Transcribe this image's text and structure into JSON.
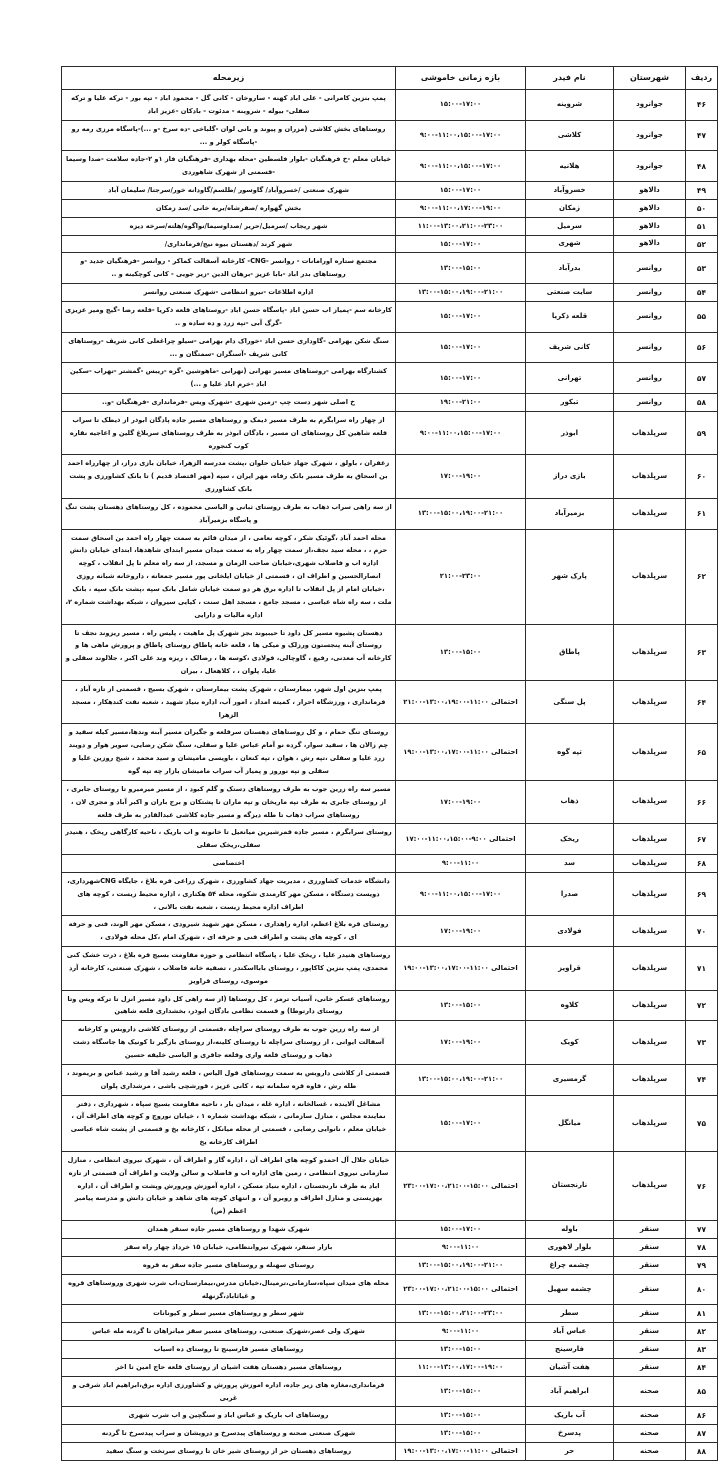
{
  "table": {
    "headers": {
      "row": "ردیف",
      "county": "شهرستان",
      "feeder": "نام فیدر",
      "time": "بازه زمانی خاموشی",
      "area": "زیرمحله"
    },
    "rows": [
      {
        "no": "۴۶",
        "county": "جوانرود",
        "feeder": "شروینه",
        "time": "۱۵:۰۰-۱۷:۰۰",
        "area": "پمپ بنزین کامرانی - علی اباد کهنه - ساروخان - کانی گل - محمود اباد - تپه بور - ترکه علیا و ترکه سفلی- بیوله - شروینه - مدئوت - بادکان -عزیز اباد"
      },
      {
        "no": "۴۷",
        "county": "جوانرود",
        "feeder": "کلاشی",
        "time": "۹:۰۰-۱۱:۰۰،۱۵:۰۰-۱۷:۰۰",
        "area": "روستاهای بخش کلاشی (مزران و پیوند و بانی لوان -گلباخی -ده سرخ -و ...)-پاسگاه مرزی رمه رو -پاسگاه کولر و ..."
      },
      {
        "no": "۴۸",
        "county": "جوانرود",
        "feeder": "هلانیه",
        "time": "۹:۰۰-۱۱:۰۰،۱۵:۰۰-۱۷:۰۰",
        "area": "خیابان معلم -خ فرهنگیان -بلوار فلسطین -محله بهداری -فرهنگیان فاز ۱و ۲-جاده سلامت -صدا وسیما -قسمتی از شهرک شاهوردی"
      },
      {
        "no": "۴۹",
        "county": "دالاهو",
        "feeder": "خسروآباد",
        "time": "۱۵:۰۰-۱۷:۰۰",
        "area": "شهرک صنعتی /خسروآباد/ گاوسور /طلسم/گاودانه خور/سرجتا/ سلیمان آباد"
      },
      {
        "no": "۵۰",
        "county": "دالاهو",
        "feeder": "زمکان",
        "time": "۹:۰۰-۱۱:۰۰،۱۷:۰۰-۱۹:۰۰",
        "area": "بخش گهواره /صفرشاه/بربه خانی /سد زمکان"
      },
      {
        "no": "۵۱",
        "county": "دالاهو",
        "feeder": "سرمیل",
        "time": "۱۱:۰۰-۱۳:۰۰،۲۱:۰۰-۲۳:۰۰",
        "area": "شهر ریجاب /سرمیل/حریر /صداوسیما/نواگوه/هلته/سرخه دیزه"
      },
      {
        "no": "۵۲",
        "county": "دالاهو",
        "feeder": "شهری",
        "time": "۱۵:۰۰-۱۷:۰۰",
        "area": "شهر کرند /دهستان بیوه نیج/فرمانداری/"
      },
      {
        "no": "۵۳",
        "county": "روانسر",
        "feeder": "بدرآباد",
        "time": "۱۳:۰۰-۱۵:۰۰",
        "area": "مجتمع ستاره اورامانات - روانسر -CNG- کارخانه آسفالت کماکر - روانسر -فرهنگیان جدید -و روستاهای بدر اباد -بابا عزیز -برهان الدین -زیر جویی - کانی کوچکینه و .."
      },
      {
        "no": "۵۴",
        "county": "روانسر",
        "feeder": "سایت صنعتی",
        "time": "۱۳:۰۰-۱۵:۰۰،۱۹:۰۰-۲۱:۰۰",
        "area": "اداره اطلاعات -نیرو انتظامی -شهرک صنعتی روانسر"
      },
      {
        "no": "۵۵",
        "county": "روانسر",
        "feeder": "قلعه ذکریا",
        "time": "۱۵:۰۰-۱۷:۰۰",
        "area": "کارخانه سم -پمیاز اب حسن اباد -پاسگاه حسن اباد -روستاهای قلعه ذکریا -قلعه رضا -گیج ومیر عزیزی -گرگ آبی -تپه زرد و ده ساده و .."
      },
      {
        "no": "۵۶",
        "county": "روانسر",
        "feeder": "کانی شریف",
        "time": "۱۵:۰۰-۱۷:۰۰",
        "area": "سنگ شکن بهرامی -گاوداری حسن اباد -خوراک دام بهرامی -سیلو چراغعلی کانی شریف -روستاهای کانی شریف -آسنگران -سمتگان و ..."
      },
      {
        "no": "۵۷",
        "county": "روانسر",
        "feeder": "تهرانی",
        "time": "۱۵:۰۰-۱۷:۰۰",
        "area": "کشتارگاه بهرامی -روستاهای مسیر تهرانی (تهرانی -ماهوشین -گره -ریبس -گمشتر -تهراب -سکین اباد -خرم اباد علیا و ...)"
      },
      {
        "no": "۵۸",
        "county": "روانسر",
        "feeder": "تبکور",
        "time": "۱۹:۰۰-۲۱:۰۰",
        "area": "خ اصلی شهر دست چپ -زمین شهری -شهرک ویس -فرمانداری -فرهنگیان -و.."
      },
      {
        "no": "۵۹",
        "county": "سرپلذهاب",
        "feeder": "ابوذر",
        "time": "۹:۰۰-۱۱:۰۰،۱۵:۰۰-۱۷:۰۰",
        "area": "از چهار راه سرابگرم به طرف مسیر ذیمک و روستاهای مسیر جاده پادگان ابوذر از ذیطک تا سراب قلعه شاهین کل روستاهای ان مسیر ، بادگان ابوذر به طرف روستاهای سربلاغ گلین و اعاجیه نقاره کوب کنجوره"
      },
      {
        "no": "۶۰",
        "county": "سرپلذهاب",
        "feeder": "بازی دراز",
        "time": "۱۷:۰۰-۱۹:۰۰",
        "area": "زعفران ، باولق ، شهرک جهاد خیابان حلوان ،پشت مدرسه الزهرا، خیابان بازی دراز، از چهارراه احمد بن اسحاق به طرف مسیر بانک رفاه، مهر ایران ، سپه (مهر اقتصاد قدیم ) تا بانک کشاورزی و پشت بانک کشاورزی"
      },
      {
        "no": "۶۱",
        "county": "سرپلذهاب",
        "feeder": "بزمیرآباد",
        "time": "۱۳:۰۰-۱۵:۰۰،۱۹:۰۰-۲۱:۰۰",
        "area": "از سه راهی سراب ذهاب به طرف روستای ثبانی و الیاسی محموده ، کل روستاهای دهستان پشت تنگ و پاسگاه بزمیرآباد"
      },
      {
        "no": "۶۲",
        "county": "سرپلذهاب",
        "feeder": "پارک شهر",
        "time": "۲۱:۰۰-۲۳:۰۰",
        "area": "محله احمد آباد ،گوئیک شکر ، کوچه نعامی ، از میدان قائم به سمت چهار راه احمد بن اسحاق سمت حرم ، ، محله سید نجف،از سمت چهار راه به سمت میدان مسیر ابتدای شاهدها، ابتدای خیابان دانش اداره اب و فاضلاب شهری،خیابان صاحب الزمان و مسجد، از سه راه معلم تا پل انقلاب ، کوچه انصارالحسین و اطراف ان ، قسمتی از خیابان ایلخانی پور مسیر جمعانه ، داروخانه شبانه روزی ،خیابان امام از پل انقلاب تا اداره برق هر دو سمت خیابان شامل بانک سپه ،پشت بانک سپه ، بانک ملت ، سه راه شاه عباسی ، مسجد جامع ، مسجد اهل سنت ، کیایی سیروان ، شبکه بهداشت شماره ۲، اداره مالیات و دارایی"
      },
      {
        "no": "۶۳",
        "county": "سرپلذهاب",
        "feeder": "پاطاق",
        "time": "۱۳:۰۰-۱۵:۰۰",
        "area": "دهستان پشیوه مسیر کل داود تا حیبیوند بجز شهرک پل ماهیت ، پلیس راه ، مسیر ریزوند نجف تا روستای آینه پنجستون ورزلک و میکی ها ، قلعه خانه پاطاق روستای پاطاق و پرورش ماهی ها و کارخانه آب معدنی، رفیع ، گاوچالی، فولادی ،کوسه ها ، رضالک ، ریزه وند علی اکبر ، جلالوند سفلی و علیا، پلوان ، ، کلاهعال ، بیران"
      },
      {
        "no": "۶۴",
        "county": "سرپلذهاب",
        "feeder": "پل سنگی",
        "time": "احتمالی ۱۱:۰۰-۱۳:۰۰،۱۹:۰۰-۲۱:۰۰",
        "area": "پمپ بنزین اول شهر، بیمارستان ، شهرک پشت بیمارستان ، شهرک بسیج ، قسمتی از تازه آباد ، فرمانداری ، ورزشگاه احرار ، کمیته امداد ، امور آب، اداره بنیاد شهید ، شعبه نفت کندهکار ، مسجد الزهرا"
      },
      {
        "no": "۶۵",
        "county": "سرپلذهاب",
        "feeder": "تپه گوه",
        "time": "احتمالی ۱۱:۰۰-۱۳:۰۰،۱۷:۰۰-۱۹:۰۰",
        "area": "روستای تنگ حمام ، و کل روستاهای دهستان سرقلعه و جگیران مسیر آبنه وندها،مسیر کیله سفید و چم زالان ها ، سفید سوار، گرده نو آمام عباس علیا و سفلی، سنگ شکن رضایی، سویر هوار و دویند زرد علیا و سفلی ،تپه رش ، هوان ، تپه کنعان ، باویسی مامیشان و سید محمد ، شیخ روزین علیا و سفلی و تپه نوروز و پمیاز آب سراب مامیشان بازار چه تپه گوه"
      },
      {
        "no": "۶۶",
        "county": "سرپلذهاب",
        "feeder": "ذهاب",
        "time": "۱۷:۰۰-۱۹:۰۰",
        "area": "مسیر سه راه زرین جوب به طرف روستاهای دستک و گلم کبود ، از مسیر میرمیرو تا روستای جابری ، از روستای جابری به طرف تپه ماریخان و تپه ماران تا پشتکان و برج باران و اکبر آباد و مجری لان ، روستاهای سراب ذهاب تا طله دیزگه و مسیر جاده کلاشی عبدالقادر به طرف قلعه"
      },
      {
        "no": "۶۷",
        "county": "سرپلذهاب",
        "feeder": "ریخک",
        "time": "احتمالی ۹:۰۰-۱۱:۰۰،۱۵:۰۰-۱۷:۰۰",
        "area": "روستای سرابگرم ، مسیر جاده قمرشیرین میانعیل تا خانونه و اب باریک ، ناحیه کارگاهی ریخک ، هنیدر سفلی،ریخک سفلی"
      },
      {
        "no": "۶۸",
        "county": "سرپلذهاب",
        "feeder": "سد",
        "time": "۹:۰۰-۱۱:۰۰",
        "area": "اختصاصی"
      },
      {
        "no": "۶۹",
        "county": "سرپلذهاب",
        "feeder": "صدرا",
        "time": "۹:۰۰-۱۱:۰۰،۱۵:۰۰-۱۷:۰۰",
        "area": "دانشگاه خدمات کشاورزی ، مدیریت جهاد کشاورزی ، شهرک زراعی قره بلاغ ، جایگاه CNGشهرداری، دویست دستگاه ، مسکن مهر کارمندی شکوه، محله ۵۴ هکتاری ، اداره محیط زیست ، کوچه های اطراف اداره محیط زیست ، شعبه نفت بالانی ،"
      },
      {
        "no": "۷۰",
        "county": "سرپلذهاب",
        "feeder": "فولادی",
        "time": "۱۷:۰۰-۱۹:۰۰",
        "area": "روستای قره بلاغ اعظم، اداره راهداری ، مسکن مهر شهید شیرودی ، مسکن مهر الوند، فنی و حرفه ای ، کوچه های پشت و اطراف فنی و حرفه ای ، شهرک امام ،کل محله فولادی ،"
      },
      {
        "no": "۷۱",
        "county": "سرپلذهاب",
        "feeder": "قراویز",
        "time": "احتمالی ۱۱:۰۰-۱۳:۰۰،۱۷:۰۰-۱۹:۰۰",
        "area": "روستاهای هنیدر علیا ، ریخک علیا ، پاسگاه انتظامی و حوزه مقاومت بسیج قره بلاغ ، ذرت خشک کنی محمدی، پمپ بنزین کاکاپور ، روستای بابااسکندر ، تصفیه خانه فاضلاب ، شهرک صنعتی، کارخانه آرد موسوی، روستای قراویز"
      },
      {
        "no": "۷۲",
        "county": "سرپلذهاب",
        "feeder": "کلاوه",
        "time": "۱۳:۰۰-۱۵:۰۰",
        "area": "روستاهای عسکر خانی، آسیاب ترمز ، کل روستاها (از سه راهی کل داود مسیر انزل تا ترکه ویس وتا روستای دارتوطا) و قسمت نظامی بادگان ابوذر، بخشداری قلعه شاهین"
      },
      {
        "no": "۷۳",
        "county": "سرپلذهاب",
        "feeder": "کویک",
        "time": "۱۷:۰۰-۱۹:۰۰",
        "area": "از سه راه زرین جوب به طرف روستای سراچله ،قسمتی از روستای کلاشی داروبس و کارخانه آسفالت ایوانی ، از روستای سراچله تا روستای کلینه،از روستای بازگیر تا کونیک ها جاسگاه دشت ذهاب و روستای قلعه واری وقلعه جاقری و الیاسی خلیفه حسین"
      },
      {
        "no": "۷۴",
        "county": "سرپلذهاب",
        "feeder": "گرمسیری",
        "time": "۱۳:۰۰-۱۵:۰۰،۱۹:۰۰-۲۱:۰۰",
        "area": "قسمتی از کلاشی داروبس به سمت روستاهای قول الیاس ، قلعه رشید آقا و رشید عباس و بریموند ، طله رش ، قاوه قره سلمانه تپه ، کانی عزیز ، قورشچی باشی ، مرشداری پلوان"
      },
      {
        "no": "۷۵",
        "county": "سرپلذهاب",
        "feeder": "میانگل",
        "time": "۱۵:۰۰-۱۷:۰۰",
        "area": "مشاغل آلاینده ، غسالخانه ، اداره غله ، میدان بار ، ناحیه مقاومت بسیج سپاه ، شهرداری ، دفتر نماینده مجلس ، منازل سازمانی ، شبکه بهداشت شماره ۱ ، خیابان نوروچ و کوچه های اطراف آن ، خیابان معلم ، نانوایی رضایی ، قسمتی از محله میانکل ، کارخانه یخ و قسمتی از پشت شاه عباسی اطراف کارخانه یخ"
      },
      {
        "no": "۷۶",
        "county": "سرپلذهاب",
        "feeder": "نارنجستان",
        "time": "احتمالی ۱۵:۰۰-۱۷:۰۰،۲۱:۰۰-۲۳:۰۰",
        "area": "خیابان جلال آل احمدو کوچه های اطراف آن ، اداره گاز و اطراف آن ، شهرک نیروی انتظامی ، منازل سازمانی نیروی انتظامی ، زمین های اداره اب و فاضلاب و سالن ولایت و اطراف آن قسمتی از تازه اباد به طرف نارنجستان ، اداره بنیاد مسکن ، اداره آموزش وپرورش وپشت و اطراف آن ، اداره بهزیستی و منازل اطراف و روبرو آن ، و انتهای کوچه های شاهد و خیابان دانش و مدرسه پیامبر اعظم (ص)"
      },
      {
        "no": "۷۷",
        "county": "سنقر",
        "feeder": "باوله",
        "time": "۱۵:۰۰-۱۷:۰۰",
        "area": "شهرک شهدا و روستاهای مسیر جاده سنقر همدان"
      },
      {
        "no": "۷۸",
        "county": "سنقر",
        "feeder": "بلوار لاهوری",
        "time": "۹:۰۰-۱۱:۰۰",
        "area": "بازار سنقر، شهرک نیروانتظامی، خیابان ۱۵ خرداد چهار راه سقز"
      },
      {
        "no": "۷۹",
        "county": "سنقر",
        "feeder": "چشمه چراغ",
        "time": "۱۳:۰۰-۱۵:۰۰،۱۹:۰۰-۲۱:۰۰",
        "area": "روستای سهنله و روستاهای مسیر جاده سقز به قروه"
      },
      {
        "no": "۸۰",
        "county": "سنقر",
        "feeder": "چشمه سهیل",
        "time": "احتمالی ۱۵:۰۰-۱۷:۰۰،۲۱:۰۰-۲۳:۰۰",
        "area": "محله های میدان سپاه،سازمانی،ترمینال،خیابان مدرس،بیمارستان،اب شرب شهری وروستاهای قروه و غیاثاباد،گزنهله"
      },
      {
        "no": "۸۱",
        "county": "سنقر",
        "feeder": "سطر",
        "time": "۱۳:۰۰-۱۵:۰۰،۲۱:۰۰-۲۳:۰۰",
        "area": "شهر سطر و روستاهای مسیر سطر و کیونانات"
      },
      {
        "no": "۸۲",
        "county": "سنقر",
        "feeder": "عباس آباد",
        "time": "۹:۰۰-۱۱:۰۰",
        "area": "شهرک ولی عصر،شهرک صنعتی، روستاهای مسیر سقز میانراهان تا گردنه مله عباس"
      },
      {
        "no": "۸۳",
        "county": "سنقر",
        "feeder": "فارسینج",
        "time": "۱۳:۰۰-۱۵:۰۰",
        "area": "روستاهای مسیر فارسینج تا روستای ده اسیاب"
      },
      {
        "no": "۸۴",
        "county": "سنقر",
        "feeder": "هفت آشیان",
        "time": "۱۱:۰۰-۱۳:۰۰،۱۷:۰۰-۱۹:۰۰",
        "area": "روستاهای مسیر دهستان هفت اشیان از روستای قلعه حاج امین تا اخر"
      },
      {
        "no": "۸۵",
        "county": "صحنه",
        "feeder": "ابراهیم آباد",
        "time": "۱۳:۰۰-۱۵:۰۰",
        "area": "فرمانداری،مغازه های زیر جاده، اداره اموزش پرورش و کشاورزی اداره برق،ابراهیم اباد شرقی و غربی"
      },
      {
        "no": "۸۶",
        "county": "صحنه",
        "feeder": "آب باریک",
        "time": "۱۳:۰۰-۱۵:۰۰",
        "area": "روستاهای اب باریک و عباس اباد و سنگچین و اب شرب شهری"
      },
      {
        "no": "۸۷",
        "county": "صحنه",
        "feeder": "پدسرخ",
        "time": "۱۳:۰۰-۱۵:۰۰",
        "area": "شهرک صنعتی صحنه و روستاهای پیدسرخ و درویشان و سراب پیدسرخ تا گردنه"
      },
      {
        "no": "۸۸",
        "county": "صحنه",
        "feeder": "حر",
        "time": "احتمالی ۱۱:۰۰-۱۳:۰۰،۱۷:۰۰-۱۹:۰۰",
        "area": "روستاهای دهستان حر از روستای شیر خان تا روستای سرتخت و سنگ سفید"
      }
    ]
  }
}
